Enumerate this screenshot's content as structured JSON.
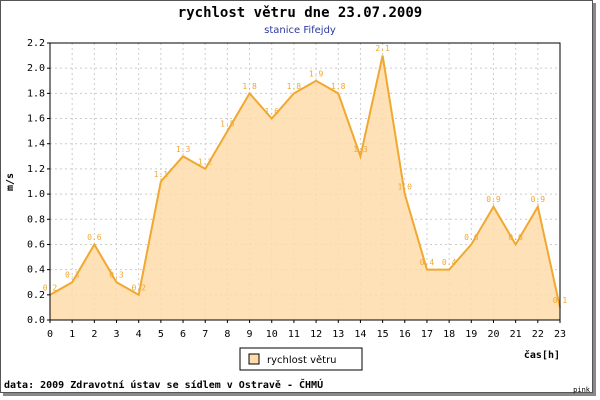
{
  "chart_data": {
    "type": "area",
    "title": "rychlost větru dne 23.07.2009",
    "subtitle": "stanice Fifejdy",
    "y_label": "m/s",
    "x_label": "čas[h]",
    "x": [
      0,
      1,
      2,
      3,
      4,
      5,
      6,
      7,
      8,
      9,
      10,
      11,
      12,
      13,
      14,
      15,
      16,
      17,
      18,
      19,
      20,
      21,
      22,
      23
    ],
    "series": [
      {
        "name": "rychlost větru",
        "color": "#f0a830",
        "fill": "#ffdcaa",
        "values": [
          0.2,
          0.3,
          0.6,
          0.3,
          0.2,
          1.1,
          1.3,
          1.2,
          1.5,
          1.8,
          1.6,
          1.8,
          1.9,
          1.8,
          1.3,
          2.1,
          1.0,
          0.4,
          0.4,
          0.6,
          0.9,
          0.6,
          0.9,
          0.1
        ],
        "value_labels": [
          "0.2",
          "0.3",
          "0.6",
          "0.3",
          "0.2",
          "1.1",
          "1.3",
          "1.2",
          "1.5",
          "1.8",
          "1.6",
          "1.8",
          "1.9",
          "1.8",
          "1.3",
          "2.1",
          "1.0",
          "0.4",
          "0.4",
          "0.6",
          "0.9",
          "0.6",
          "0.9",
          "0.1"
        ]
      }
    ],
    "xlim": [
      0,
      23
    ],
    "xticks": [
      0,
      1,
      2,
      3,
      4,
      5,
      6,
      7,
      8,
      9,
      10,
      11,
      12,
      13,
      14,
      15,
      16,
      17,
      18,
      19,
      20,
      21,
      22,
      23
    ],
    "ylim": [
      0,
      2.2
    ],
    "yticks": [
      {
        "value": 0,
        "label": "0.0"
      },
      0.2,
      0.4,
      0.6,
      0.8,
      {
        "value": 1,
        "label": "1.0"
      },
      1.2,
      1.4,
      1.6,
      1.8,
      {
        "value": 2,
        "label": "2.0"
      },
      2.2
    ],
    "grid": true,
    "legend": "bottom",
    "footer": "data: 2009 Zdravotní ústav se sídlem v Ostravě - ČHMÚ",
    "credit": "pink"
  }
}
